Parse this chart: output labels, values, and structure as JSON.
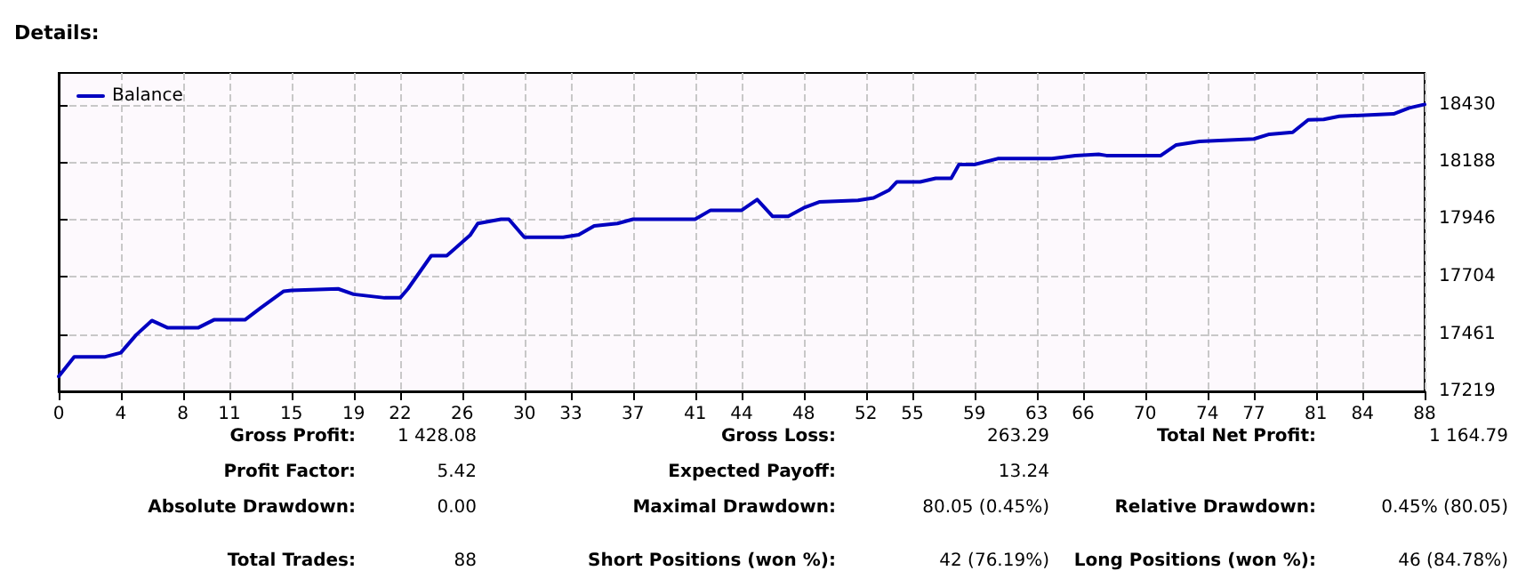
{
  "chart_data": {
    "type": "line",
    "title": "Details:",
    "series": [
      {
        "name": "Balance",
        "color": "#0000c0",
        "x": [
          0,
          1,
          3,
          4,
          5,
          6,
          7,
          9,
          10,
          12,
          13,
          14.5,
          15,
          18,
          19,
          21,
          22,
          22.5,
          24,
          25,
          26.5,
          27,
          28.5,
          29,
          30,
          32.5,
          33.5,
          34.5,
          36,
          37,
          41,
          42,
          44,
          45,
          46,
          47,
          48,
          49,
          51.5,
          52.5,
          53.5,
          54,
          55.5,
          56.5,
          57.5,
          58,
          59,
          60.5,
          64,
          65.5,
          67,
          67.5,
          71,
          72,
          73.5,
          77,
          78,
          79.5,
          80.5,
          81.5,
          82.5,
          86,
          87,
          88
        ],
        "values": [
          17282,
          17365,
          17365,
          17382,
          17458,
          17518,
          17488,
          17488,
          17521,
          17521,
          17571,
          17642,
          17645,
          17652,
          17629,
          17614,
          17614,
          17652,
          17792,
          17792,
          17878,
          17928,
          17946,
          17946,
          17870,
          17870,
          17880,
          17918,
          17928,
          17946,
          17946,
          17984,
          17984,
          18029,
          17958,
          17958,
          17994,
          18019,
          18026,
          18036,
          18069,
          18104,
          18104,
          18119,
          18119,
          18177,
          18177,
          18202,
          18202,
          18215,
          18220,
          18215,
          18215,
          18260,
          18275,
          18285,
          18305,
          18313,
          18366,
          18368,
          18381,
          18391,
          18416,
          18431
        ]
      }
    ],
    "xlim": [
      0,
      88
    ],
    "xticks": [
      0,
      4,
      8,
      11,
      15,
      19,
      22,
      26,
      30,
      33,
      37,
      41,
      44,
      48,
      52,
      55,
      59,
      63,
      66,
      70,
      74,
      77,
      81,
      84,
      88
    ],
    "ylim": [
      17219,
      18564
    ],
    "yticks": [
      17219,
      17461,
      17704,
      17946,
      18188,
      18430
    ],
    "grid": true,
    "legend": "top left",
    "marker": "none",
    "line_style": "solid",
    "annotations": [
      "Gross Profit:",
      "1 428.08",
      "Gross Loss:",
      "263.29",
      "Total Net Profit:",
      "1 164.79",
      "Profit Factor:",
      "5.42",
      "Expected Payoff:",
      "13.24",
      "Absolute Drawdown:",
      "0.00",
      "Maximal Drawdown:",
      "80.05 (0.45%)",
      "Relative Drawdown:",
      "0.45% (80.05)",
      "Total Trades:",
      "88",
      "Short Positions (won %):",
      "42 (76.19%)",
      "Long Positions (won %):",
      "46 (84.78%)"
    ]
  }
}
